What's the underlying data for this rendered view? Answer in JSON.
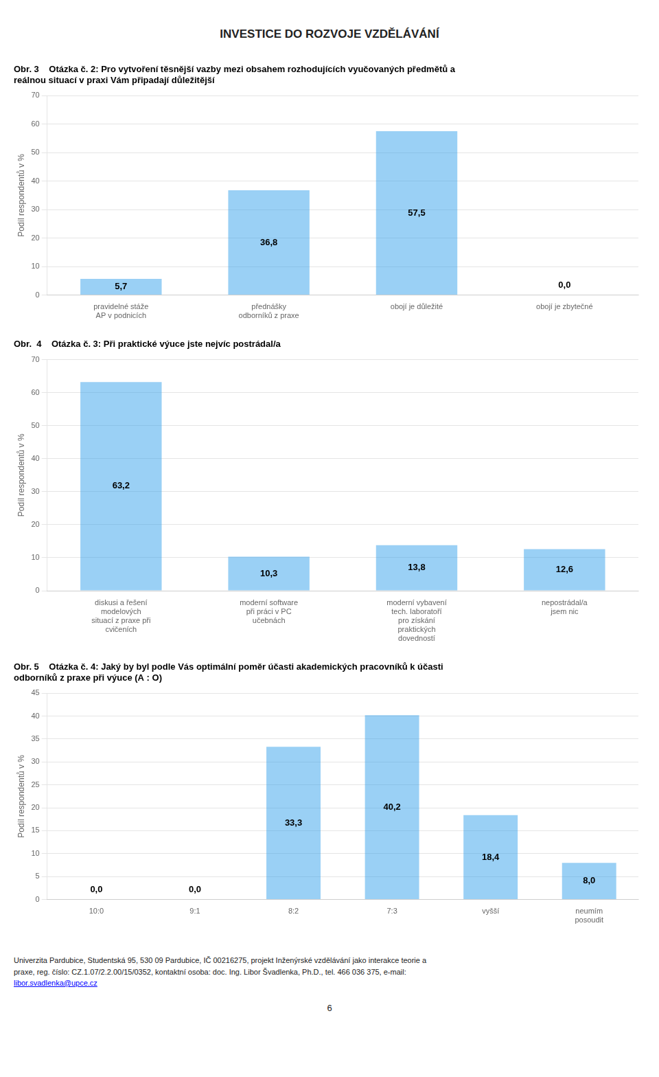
{
  "header_text": "INVESTICE DO ROZVOJE VZDĚLÁVÁNÍ",
  "chart_data": [
    {
      "type": "bar",
      "title": "Obr. 3    Otázka č. 2: Pro vytvoření těsnější vazby mezi obsahem rozhodujících vyučovaných předmětů a\nreálnou situací v praxi Vám připadají důležitější",
      "categories": [
        "pravidelné stáže\nAP v podnicích",
        "přednášky\nodborníků z praxe",
        "obojí je důležité",
        "obojí je zbytečné"
      ],
      "values": [
        5.7,
        36.8,
        57.5,
        0.0
      ],
      "value_labels": [
        "5,7",
        "36,8",
        "57,5",
        "0,0"
      ],
      "data_labels": true,
      "y_label": "Podíl respondentů v %",
      "ylim": [
        0,
        70
      ],
      "yticks": [
        0,
        10,
        20,
        30,
        40,
        50,
        60,
        70
      ],
      "grid": true
    },
    {
      "type": "bar",
      "title": "Obr.  4    Otázka č. 3: Při praktické výuce jste nejvíc postrádal/a",
      "categories": [
        "diskusi a řešení\nmodelových\nsituací z praxe při\ncvičeních",
        "moderní software\npři práci v PC\nučebnách",
        "moderní vybavení\ntech. laboratoří\npro získání\npraktických\ndovedností",
        "nepostrádal/a\njsem nic"
      ],
      "values": [
        63.2,
        10.3,
        13.8,
        12.6
      ],
      "value_labels": [
        "63,2",
        "10,3",
        "13,8",
        "12,6"
      ],
      "data_labels": true,
      "y_label": "Podíl respondentů v %",
      "ylim": [
        0,
        70
      ],
      "yticks": [
        0,
        10,
        20,
        30,
        40,
        50,
        60,
        70
      ],
      "grid": true
    },
    {
      "type": "bar",
      "title": "Obr. 5    Otázka č. 4: Jaký by byl podle Vás optimální poměr účasti akademických pracovníků k účasti\nodborníků z praxe při výuce (A : O)",
      "categories": [
        "10:0",
        "9:1",
        "8:2",
        "7:3",
        "vyšší",
        "neumím\nposoudit"
      ],
      "values": [
        0.0,
        0.0,
        33.3,
        40.2,
        18.4,
        8.0
      ],
      "value_labels": [
        "0,0",
        "0,0",
        "33,3",
        "40,2",
        "18,4",
        "8,0"
      ],
      "data_labels": true,
      "y_label": "Podíl respondentů v %",
      "ylim": [
        0,
        45
      ],
      "yticks": [
        0,
        5,
        10,
        15,
        20,
        25,
        30,
        35,
        40,
        45
      ],
      "grid": true
    }
  ],
  "footer_text": "Univerzita Pardubice, Studentská 95, 530 09 Pardubice, IČ 00216275, projekt Inženýrské vzdělávání jako interakce teorie a\npraxe, reg. číslo: CZ.1.07/2.2.00/15/0352, kontaktní osoba: doc. Ing. Libor Švadlenka, Ph.D., tel. 466 036 375, e-mail:\nlibor.svadlenka@upce.cz",
  "footer_link": "libor.svadlenka@upce.cz",
  "page_number": "6"
}
